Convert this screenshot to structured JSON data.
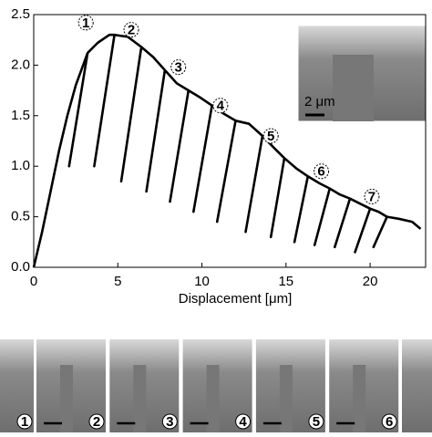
{
  "chart_data": {
    "type": "line",
    "xlabel": "Displacement [μm]",
    "xlim": [
      0,
      23.3
    ],
    "ylim": [
      0,
      2.5
    ],
    "xticks": [
      0,
      5,
      10,
      15,
      20
    ],
    "yticks": [
      {
        "value": 0,
        "label": "0.0"
      },
      0.5,
      {
        "value": 1,
        "label": "1.0"
      },
      1.5,
      {
        "value": 2,
        "label": "2.0"
      },
      2.5
    ],
    "series": [
      {
        "color": "#000000",
        "x": [
          0,
          0.5,
          1,
          1.5,
          2,
          2.5,
          3.2,
          2.1,
          3.2,
          3.8,
          4.5,
          4.8,
          3.6,
          4.8,
          5.6,
          6.4,
          5.2,
          6.4,
          7.1,
          7.8,
          6.7,
          7.8,
          8.5,
          9.2,
          8.1,
          9.2,
          9.9,
          10.6,
          9.5,
          10.6,
          11.3,
          12.0,
          10.9,
          12.0,
          12.8,
          13.6,
          12.6,
          13.6,
          14.3,
          14.9,
          14.1,
          14.9,
          15.6,
          16.3,
          15.5,
          16.3,
          17.0,
          17.6,
          16.7,
          17.6,
          18.2,
          18.8,
          17.9,
          18.8,
          19.4,
          20.0,
          19.1,
          20.0,
          20.5,
          21.0,
          20.2,
          21.0,
          21.7,
          22.5,
          23.0
        ],
        "values": [
          0,
          0.35,
          0.75,
          1.15,
          1.5,
          1.8,
          2.12,
          1.0,
          2.12,
          2.22,
          2.3,
          2.3,
          1.0,
          2.3,
          2.28,
          2.18,
          0.85,
          2.18,
          2.08,
          1.95,
          0.75,
          1.95,
          1.82,
          1.75,
          0.65,
          1.75,
          1.68,
          1.6,
          0.55,
          1.6,
          1.52,
          1.45,
          0.45,
          1.45,
          1.42,
          1.3,
          0.35,
          1.3,
          1.18,
          1.08,
          0.3,
          1.08,
          0.98,
          0.9,
          0.25,
          0.9,
          0.83,
          0.78,
          0.22,
          0.78,
          0.72,
          0.68,
          0.2,
          0.68,
          0.63,
          0.58,
          0.15,
          0.58,
          0.55,
          0.5,
          0.2,
          0.5,
          0.48,
          0.45,
          0.38
        ]
      }
    ],
    "annotations": [
      {
        "text": "1",
        "x": 3.1,
        "y": 2.42
      },
      {
        "text": "2",
        "x": 5.8,
        "y": 2.35
      },
      {
        "text": "3",
        "x": 8.6,
        "y": 1.98
      },
      {
        "text": "4",
        "x": 11.1,
        "y": 1.6
      },
      {
        "text": "5",
        "x": 14.1,
        "y": 1.3
      },
      {
        "text": "6",
        "x": 17.1,
        "y": 0.95
      },
      {
        "text": "7",
        "x": 20.1,
        "y": 0.7
      }
    ],
    "inset_scale_label": "2 μm",
    "panel_labels": [
      "1",
      "2",
      "3",
      "4",
      "5",
      "6"
    ]
  }
}
